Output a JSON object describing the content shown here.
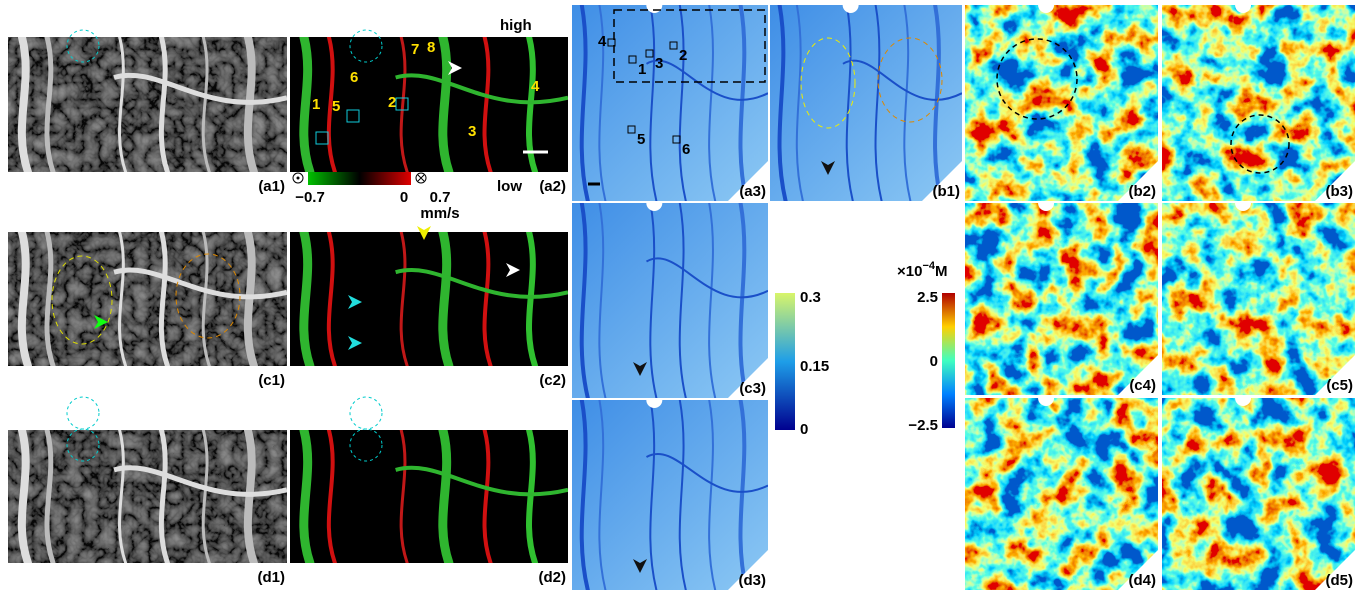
{
  "panel_labels": [
    "(a1)",
    "(a2)",
    "(a3)",
    "(b1)",
    "(b2)",
    "(b3)",
    "(c1)",
    "(c2)",
    "(c3)",
    "(c4)",
    "(c5)",
    "(d1)",
    "(d2)",
    "(d3)",
    "(d4)",
    "(d5)"
  ],
  "a2_markers": [
    "1",
    "5",
    "6",
    "2",
    "7",
    "8",
    "3",
    "4"
  ],
  "a3_markers": [
    "4",
    "1",
    "3",
    "2",
    "5",
    "6"
  ],
  "velocity_colorbar": {
    "high": "high",
    "low": "low",
    "min": "−0.7",
    "mid": "0",
    "max": "0.7",
    "unit": "mm/s"
  },
  "absorbance_colorbar": {
    "ticks": [
      "0.3",
      "0.15",
      "0"
    ]
  },
  "concentration_colorbar": {
    "unit_prefix": "×10",
    "unit_exponent": "−4",
    "unit_suffix": "M",
    "ticks": [
      "2.5",
      "0",
      "−2.5"
    ]
  }
}
